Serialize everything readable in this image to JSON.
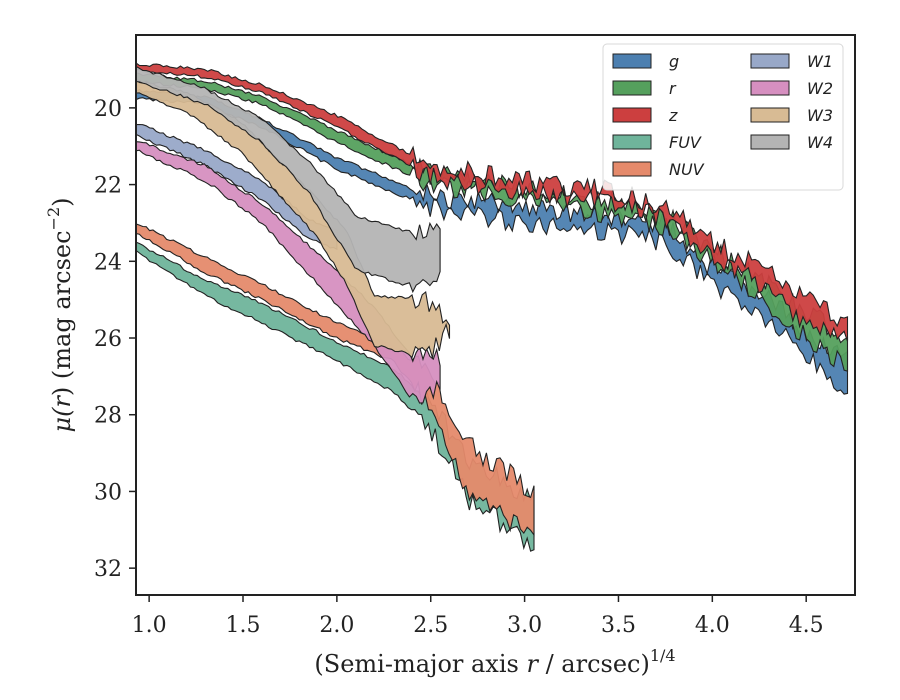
{
  "chart_data": {
    "type": "area",
    "title": "",
    "xlabel": "(Semi-major axis r / arcsec)^1/4",
    "xlabel_parts": [
      "(Semi-major axis ",
      "r",
      " / arcsec)",
      "1/4"
    ],
    "ylabel": "μ(r) (mag arcsec−2)",
    "ylabel_parts": [
      "μ(",
      "r",
      ") (mag arcsec",
      "−2",
      ")"
    ],
    "xlim": [
      0.93,
      4.76
    ],
    "ylim": [
      32.7,
      18.1
    ],
    "y_inverted": true,
    "xticks": [
      1.0,
      1.5,
      2.0,
      2.5,
      3.0,
      3.5,
      4.0,
      4.5
    ],
    "xtick_labels": [
      "1.0",
      "1.5",
      "2.0",
      "2.5",
      "3.0",
      "3.5",
      "4.0",
      "4.5"
    ],
    "yticks": [
      20,
      22,
      24,
      26,
      28,
      30,
      32
    ],
    "ytick_labels": [
      "20",
      "22",
      "24",
      "26",
      "28",
      "30",
      "32"
    ],
    "grid": false,
    "legend_position": "top-right",
    "legend_columns": 2,
    "series": [
      {
        "name": "g",
        "color": "#4c7fb0",
        "upper": [
          [
            0.93,
            19.55
          ],
          [
            1.3,
            19.7
          ],
          [
            1.6,
            20.3
          ],
          [
            2.0,
            21.3
          ],
          [
            2.5,
            22.3
          ],
          [
            3.0,
            22.6
          ],
          [
            3.5,
            22.9
          ],
          [
            3.75,
            23.0
          ],
          [
            4.0,
            24.2
          ],
          [
            4.3,
            25.0
          ],
          [
            4.5,
            25.8
          ],
          [
            4.72,
            26.6
          ]
        ],
        "lower": [
          [
            0.93,
            19.75
          ],
          [
            1.3,
            19.9
          ],
          [
            1.6,
            20.5
          ],
          [
            2.0,
            21.6
          ],
          [
            2.5,
            22.6
          ],
          [
            3.0,
            23.0
          ],
          [
            3.5,
            23.3
          ],
          [
            3.75,
            23.5
          ],
          [
            4.0,
            24.6
          ],
          [
            4.3,
            25.6
          ],
          [
            4.5,
            26.5
          ],
          [
            4.72,
            27.5
          ]
        ]
      },
      {
        "name": "r",
        "color": "#55a05d",
        "upper": [
          [
            0.93,
            19.1
          ],
          [
            1.3,
            19.3
          ],
          [
            1.6,
            19.7
          ],
          [
            2.0,
            20.6
          ],
          [
            2.5,
            21.7
          ],
          [
            3.0,
            22.1
          ],
          [
            3.5,
            22.5
          ],
          [
            3.75,
            22.8
          ],
          [
            4.0,
            23.7
          ],
          [
            4.3,
            24.6
          ],
          [
            4.5,
            25.3
          ],
          [
            4.72,
            26.0
          ]
        ],
        "lower": [
          [
            0.93,
            19.3
          ],
          [
            1.3,
            19.5
          ],
          [
            1.6,
            19.9
          ],
          [
            2.0,
            20.9
          ],
          [
            2.5,
            22.0
          ],
          [
            3.0,
            22.4
          ],
          [
            3.5,
            22.8
          ],
          [
            3.75,
            23.1
          ],
          [
            4.0,
            24.0
          ],
          [
            4.3,
            25.1
          ],
          [
            4.5,
            26.0
          ],
          [
            4.72,
            26.7
          ]
        ]
      },
      {
        "name": "z",
        "color": "#cc3f3f",
        "upper": [
          [
            0.93,
            18.85
          ],
          [
            1.3,
            19.0
          ],
          [
            1.6,
            19.4
          ],
          [
            2.0,
            20.2
          ],
          [
            2.5,
            21.5
          ],
          [
            3.0,
            21.9
          ],
          [
            3.5,
            22.2
          ],
          [
            3.75,
            22.6
          ],
          [
            4.0,
            23.5
          ],
          [
            4.3,
            24.3
          ],
          [
            4.5,
            25.0
          ],
          [
            4.72,
            25.6
          ]
        ],
        "lower": [
          [
            0.93,
            19.0
          ],
          [
            1.3,
            19.2
          ],
          [
            1.6,
            19.6
          ],
          [
            2.0,
            20.5
          ],
          [
            2.5,
            21.8
          ],
          [
            3.0,
            22.2
          ],
          [
            3.5,
            22.5
          ],
          [
            3.75,
            22.9
          ],
          [
            4.0,
            23.8
          ],
          [
            4.3,
            24.8
          ],
          [
            4.5,
            25.6
          ],
          [
            4.72,
            26.1
          ]
        ]
      },
      {
        "name": "FUV",
        "color": "#6fb49b",
        "upper": [
          [
            0.93,
            23.5
          ],
          [
            1.3,
            24.5
          ],
          [
            1.6,
            25.1
          ],
          [
            2.0,
            26.1
          ],
          [
            2.3,
            26.8
          ],
          [
            2.5,
            27.6
          ],
          [
            2.7,
            29.2
          ],
          [
            3.05,
            30.2
          ]
        ],
        "lower": [
          [
            0.93,
            23.75
          ],
          [
            1.3,
            24.9
          ],
          [
            1.6,
            25.6
          ],
          [
            2.0,
            26.6
          ],
          [
            2.3,
            27.4
          ],
          [
            2.5,
            28.4
          ],
          [
            2.7,
            30.2
          ],
          [
            3.05,
            31.4
          ]
        ]
      },
      {
        "name": "NUV",
        "color": "#e58a6b",
        "upper": [
          [
            0.93,
            23.0
          ],
          [
            1.3,
            23.9
          ],
          [
            1.6,
            24.6
          ],
          [
            2.0,
            25.6
          ],
          [
            2.3,
            26.2
          ],
          [
            2.5,
            27.0
          ],
          [
            2.7,
            28.8
          ],
          [
            3.05,
            30.0
          ]
        ],
        "lower": [
          [
            0.93,
            23.25
          ],
          [
            1.3,
            24.3
          ],
          [
            1.6,
            25.0
          ],
          [
            2.0,
            26.0
          ],
          [
            2.3,
            26.6
          ],
          [
            2.5,
            27.8
          ],
          [
            2.7,
            30.0
          ],
          [
            3.05,
            31.2
          ]
        ]
      },
      {
        "name": "W1",
        "color": "#98a8c8",
        "upper": [
          [
            0.93,
            20.4
          ],
          [
            1.3,
            21.1
          ],
          [
            1.6,
            21.9
          ],
          [
            1.85,
            22.9
          ],
          [
            2.0,
            23.2
          ]
        ],
        "lower": [
          [
            0.93,
            20.7
          ],
          [
            1.3,
            21.5
          ],
          [
            1.6,
            22.4
          ],
          [
            1.85,
            23.4
          ],
          [
            2.0,
            23.7
          ]
        ]
      },
      {
        "name": "W2",
        "color": "#d68fc0",
        "upper": [
          [
            0.93,
            20.85
          ],
          [
            1.3,
            21.5
          ],
          [
            1.6,
            22.5
          ],
          [
            1.9,
            23.8
          ],
          [
            2.2,
            25.2
          ],
          [
            2.4,
            26.5
          ],
          [
            2.55,
            26.5
          ]
        ],
        "lower": [
          [
            0.93,
            21.1
          ],
          [
            1.3,
            21.9
          ],
          [
            1.6,
            23.0
          ],
          [
            1.9,
            24.6
          ],
          [
            2.2,
            26.2
          ],
          [
            2.4,
            27.6
          ],
          [
            2.55,
            27.2
          ]
        ]
      },
      {
        "name": "W3",
        "color": "#d8bb94",
        "upper": [
          [
            0.93,
            19.3
          ],
          [
            1.2,
            19.6
          ],
          [
            1.5,
            20.4
          ],
          [
            1.7,
            21.4
          ],
          [
            1.9,
            22.4
          ],
          [
            2.05,
            23.2
          ],
          [
            2.2,
            24.9
          ],
          [
            2.48,
            25.0
          ],
          [
            2.6,
            25.6
          ]
        ],
        "lower": [
          [
            0.93,
            19.6
          ],
          [
            1.2,
            20.1
          ],
          [
            1.5,
            21.2
          ],
          [
            1.7,
            22.3
          ],
          [
            1.9,
            23.4
          ],
          [
            2.05,
            24.6
          ],
          [
            2.2,
            26.2
          ],
          [
            2.48,
            26.5
          ],
          [
            2.6,
            25.8
          ]
        ]
      },
      {
        "name": "W4",
        "color": "#b4b4b4",
        "upper": [
          [
            0.93,
            18.95
          ],
          [
            1.3,
            19.5
          ],
          [
            1.6,
            20.3
          ],
          [
            1.85,
            21.4
          ],
          [
            2.1,
            22.8
          ],
          [
            2.35,
            23.2
          ],
          [
            2.55,
            23.3
          ]
        ],
        "lower": [
          [
            0.93,
            19.3
          ],
          [
            1.3,
            19.9
          ],
          [
            1.6,
            20.9
          ],
          [
            1.85,
            22.2
          ],
          [
            2.1,
            24.2
          ],
          [
            2.35,
            24.6
          ],
          [
            2.55,
            24.5
          ]
        ]
      }
    ]
  }
}
